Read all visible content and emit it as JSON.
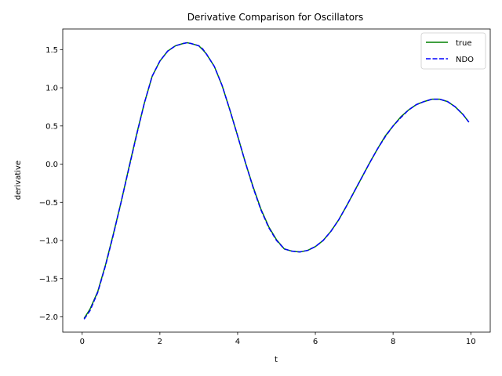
{
  "chart_data": {
    "type": "line",
    "title": "Derivative Comparison for Oscillators",
    "xlabel": "t",
    "ylabel": "derivative",
    "xlim": [
      -0.5,
      10.5
    ],
    "ylim": [
      -2.2,
      1.77
    ],
    "xticks": [
      0,
      2,
      4,
      6,
      8,
      10
    ],
    "yticks": [
      -2.0,
      -1.5,
      -1.0,
      -0.5,
      0.0,
      0.5,
      1.0,
      1.5
    ],
    "xtick_labels": [
      "0",
      "2",
      "4",
      "6",
      "8",
      "10"
    ],
    "ytick_labels": [
      "−2.0",
      "−1.5",
      "−1.0",
      "−0.5",
      "0.0",
      "0.5",
      "1.0",
      "1.5"
    ],
    "grid": false,
    "legend_position": "top-right",
    "x": [
      0.05,
      0.2,
      0.4,
      0.6,
      0.8,
      1.0,
      1.2,
      1.4,
      1.6,
      1.8,
      2.0,
      2.2,
      2.4,
      2.6,
      2.7,
      2.8,
      3.0,
      3.1,
      3.2,
      3.4,
      3.6,
      3.8,
      4.0,
      4.2,
      4.4,
      4.6,
      4.8,
      5.0,
      5.2,
      5.4,
      5.6,
      5.8,
      6.0,
      6.2,
      6.4,
      6.6,
      6.8,
      7.0,
      7.2,
      7.4,
      7.6,
      7.8,
      8.0,
      8.2,
      8.4,
      8.6,
      8.8,
      9.0,
      9.2,
      9.4,
      9.6,
      9.8,
      9.95
    ],
    "series": [
      {
        "name": "true",
        "color": "#008000",
        "style": "solid",
        "values": [
          -2.02,
          -1.9,
          -1.67,
          -1.32,
          -0.92,
          -0.5,
          -0.05,
          0.39,
          0.8,
          1.15,
          1.35,
          1.48,
          1.55,
          1.58,
          1.59,
          1.58,
          1.55,
          1.5,
          1.44,
          1.28,
          1.03,
          0.71,
          0.37,
          0.02,
          -0.3,
          -0.59,
          -0.82,
          -0.99,
          -1.11,
          -1.14,
          -1.15,
          -1.13,
          -1.08,
          -1.0,
          -0.88,
          -0.73,
          -0.55,
          -0.36,
          -0.17,
          0.02,
          0.2,
          0.37,
          0.5,
          0.62,
          0.71,
          0.78,
          0.82,
          0.85,
          0.85,
          0.82,
          0.75,
          0.65,
          0.55
        ]
      },
      {
        "name": "NDO",
        "color": "#0000ff",
        "style": "dashed",
        "values": [
          -2.03,
          -1.92,
          -1.68,
          -1.33,
          -0.93,
          -0.5,
          -0.06,
          0.38,
          0.8,
          1.15,
          1.35,
          1.48,
          1.55,
          1.58,
          1.59,
          1.58,
          1.55,
          1.51,
          1.44,
          1.28,
          1.03,
          0.71,
          0.37,
          0.02,
          -0.31,
          -0.6,
          -0.83,
          -1.0,
          -1.11,
          -1.14,
          -1.15,
          -1.13,
          -1.08,
          -1.0,
          -0.88,
          -0.73,
          -0.55,
          -0.36,
          -0.17,
          0.02,
          0.2,
          0.36,
          0.5,
          0.61,
          0.71,
          0.78,
          0.82,
          0.85,
          0.85,
          0.82,
          0.75,
          0.65,
          0.55
        ]
      }
    ]
  }
}
